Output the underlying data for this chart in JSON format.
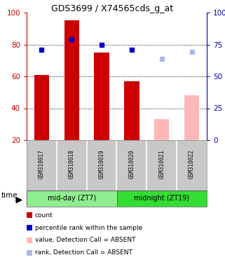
{
  "title": "GDS3699 / X74565cds_g_at",
  "samples": [
    "GSM310017",
    "GSM310018",
    "GSM310019",
    "GSM310020",
    "GSM310021",
    "GSM310022"
  ],
  "groups": [
    {
      "label": "mid-day (ZT7)",
      "color": "#90EE90"
    },
    {
      "label": "midnight (ZT19)",
      "color": "#33DD33"
    }
  ],
  "bar_values": [
    61,
    95,
    75,
    57,
    33,
    48
  ],
  "bar_colors": [
    "#CC0000",
    "#CC0000",
    "#CC0000",
    "#CC0000",
    "#FFB8B8",
    "#FFB8B8"
  ],
  "rank_values": [
    71,
    79,
    75,
    71,
    64,
    69
  ],
  "rank_colors": [
    "#0000CC",
    "#0000CC",
    "#0000CC",
    "#0000CC",
    "#AABBDD",
    "#AABBDD"
  ],
  "ylim_left": [
    20,
    100
  ],
  "left_ticks": [
    20,
    40,
    60,
    80,
    100
  ],
  "right_ticks": [
    0,
    25,
    50,
    75,
    100
  ],
  "right_tick_labels": [
    "0",
    "25",
    "50",
    "75",
    "100%"
  ],
  "dotted_lines": [
    40,
    60,
    80
  ],
  "legend_items": [
    {
      "color": "#CC0000",
      "label": "count"
    },
    {
      "color": "#0000CC",
      "label": "percentile rank within the sample"
    },
    {
      "color": "#FFB8B8",
      "label": "value, Detection Call = ABSENT"
    },
    {
      "color": "#AABBDD",
      "label": "rank, Detection Call = ABSENT"
    }
  ],
  "left_axis_color": "#CC0000",
  "right_axis_color": "#0000BB"
}
